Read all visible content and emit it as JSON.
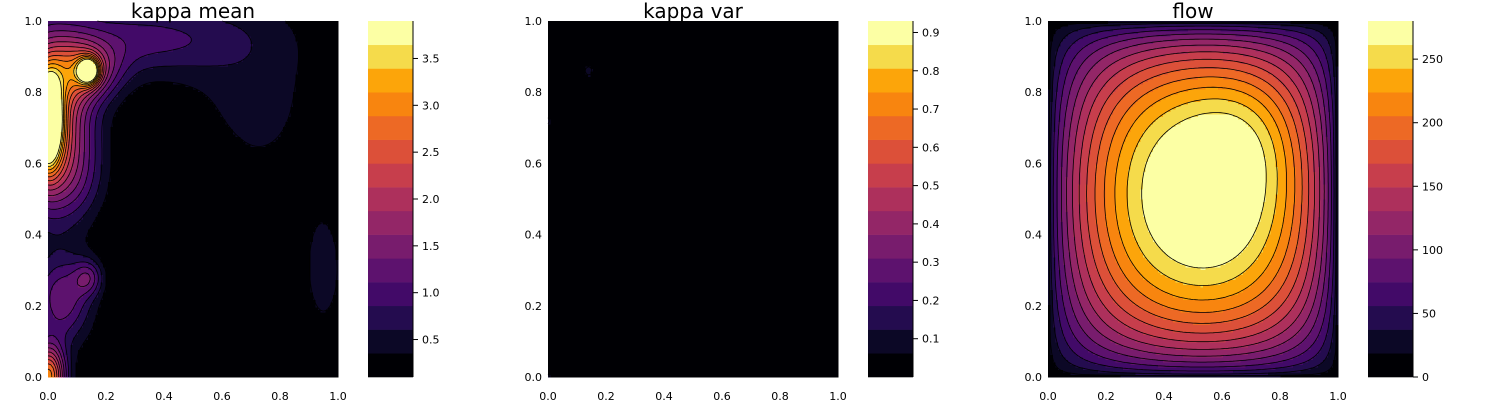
{
  "chart_data": [
    {
      "type": "heatmap",
      "subtype": "filled-contour",
      "title": "kappa mean",
      "colormap": "inferno",
      "xlim": [
        0,
        1
      ],
      "ylim": [
        0,
        1
      ],
      "x_ticks": [
        "0.0",
        "0.2",
        "0.4",
        "0.6",
        "0.8",
        "1.0"
      ],
      "y_ticks": [
        "0.0",
        "0.2",
        "0.4",
        "0.6",
        "0.8",
        "1.0"
      ],
      "colorbar": {
        "range": [
          0.1,
          3.9
        ],
        "levels": 15,
        "ticks": [
          0.5,
          1.0,
          1.5,
          2.0,
          2.5,
          3.0,
          3.5
        ],
        "tick_labels": [
          "0.5",
          "1.0",
          "1.5",
          "2.0",
          "2.5",
          "3.0",
          "3.5"
        ]
      },
      "features": [
        {
          "x": 0.0,
          "y": 0.72,
          "value": 3.8
        },
        {
          "x": 0.14,
          "y": 0.86,
          "value": 3.2
        },
        {
          "x": 0.0,
          "y": 0.0,
          "value": 3.0
        },
        {
          "x": 0.14,
          "y": 0.28,
          "value": 1.8
        },
        {
          "x": 0.5,
          "y": 0.4,
          "value": 0.1
        }
      ]
    },
    {
      "type": "heatmap",
      "subtype": "filled-contour",
      "title": "kappa var",
      "colormap": "inferno",
      "xlim": [
        0,
        1
      ],
      "ylim": [
        0,
        1
      ],
      "x_ticks": [
        "0.0",
        "0.2",
        "0.4",
        "0.6",
        "0.8",
        "1.0"
      ],
      "y_ticks": [
        "0.0",
        "0.2",
        "0.4",
        "0.6",
        "0.8",
        "1.0"
      ],
      "colorbar": {
        "range": [
          0.0,
          0.93
        ],
        "levels": 15,
        "ticks": [
          0.1,
          0.2,
          0.3,
          0.4,
          0.5,
          0.6,
          0.7,
          0.8,
          0.9
        ],
        "tick_labels": [
          "0.1",
          "0.2",
          "0.3",
          "0.4",
          "0.5",
          "0.6",
          "0.7",
          "0.8",
          "0.9"
        ]
      },
      "features": [
        {
          "x": 0.14,
          "y": 0.86,
          "value": 0.08
        },
        {
          "x": 0.0,
          "y": 0.72,
          "value": 0.06
        },
        {
          "x": 0.0,
          "y": 0.0,
          "value": 0.06
        }
      ]
    },
    {
      "type": "heatmap",
      "subtype": "filled-contour",
      "title": "flow",
      "colormap": "inferno",
      "xlim": [
        0,
        1
      ],
      "ylim": [
        0,
        1
      ],
      "x_ticks": [
        "0.0",
        "0.2",
        "0.4",
        "0.6",
        "0.8",
        "1.0"
      ],
      "y_ticks": [
        "0.0",
        "0.2",
        "0.4",
        "0.6",
        "0.8",
        "1.0"
      ],
      "colorbar": {
        "range": [
          0,
          280
        ],
        "levels": 15,
        "ticks": [
          0,
          50,
          100,
          150,
          200,
          250
        ],
        "tick_labels": [
          "0",
          "50",
          "100",
          "150",
          "200",
          "250"
        ]
      },
      "features": [
        {
          "x": 0.57,
          "y": 0.48,
          "value": 280
        }
      ]
    }
  ]
}
